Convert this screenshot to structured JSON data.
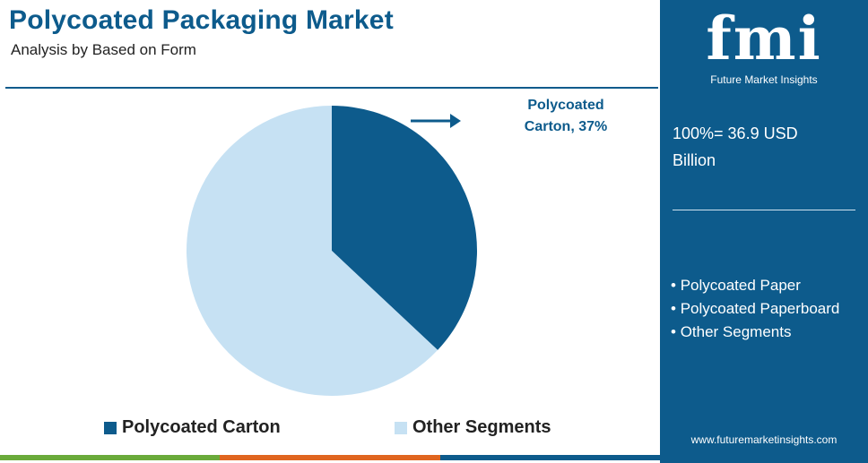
{
  "header": {
    "title": "Polycoated Packaging Market",
    "subtitle": "Analysis by Based on Form"
  },
  "callout": {
    "line1": "Polycoated",
    "line2": "Carton, 37%"
  },
  "side_panel": {
    "logo_text": "fmi",
    "logo_sub": "Future Market Insights",
    "total_line1": "100%= 36.9 USD",
    "total_line2": "Billion",
    "segments": [
      "Polycoated Paper",
      "Polycoated Paperboard",
      "Other Segments"
    ],
    "website": "www.futuremarketinsights.com"
  },
  "colors": {
    "primary": "#0d5b8c",
    "light": "#c6e1f3",
    "bar": [
      "#6aaa3a",
      "#e0651f",
      "#0d5b8c"
    ]
  },
  "chart_data": {
    "type": "pie",
    "title": "Polycoated Packaging Market",
    "subtitle": "Analysis by Based on Form",
    "unit": "%",
    "slices": [
      {
        "label": "Polycoated Carton",
        "value": 37,
        "color": "#0d5b8c"
      },
      {
        "label": "Other Segments",
        "value": 63,
        "color": "#c6e1f3"
      }
    ],
    "start_angle_deg": 0,
    "direction": "clockwise",
    "legend_position": "bottom"
  }
}
